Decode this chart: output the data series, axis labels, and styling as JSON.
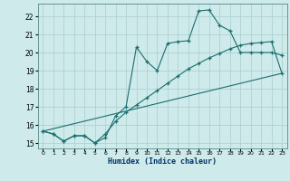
{
  "xlabel": "Humidex (Indice chaleur)",
  "bg_color": "#ceeaea",
  "grid_color": "#aacece",
  "line_color": "#1a6e6e",
  "xmin": -0.5,
  "xmax": 23.5,
  "ymin": 14.7,
  "ymax": 22.7,
  "yticks": [
    15,
    16,
    17,
    18,
    19,
    20,
    21,
    22
  ],
  "xticks": [
    0,
    1,
    2,
    3,
    4,
    5,
    6,
    7,
    8,
    9,
    10,
    11,
    12,
    13,
    14,
    15,
    16,
    17,
    18,
    19,
    20,
    21,
    22,
    23
  ],
  "line1_x": [
    0,
    1,
    2,
    3,
    4,
    5,
    6,
    7,
    8,
    9,
    10,
    11,
    12,
    13,
    14,
    15,
    16,
    17,
    18,
    19,
    20,
    21,
    22,
    23
  ],
  "line1_y": [
    15.65,
    15.5,
    15.1,
    15.4,
    15.4,
    15.0,
    15.3,
    16.5,
    17.0,
    20.3,
    19.5,
    19.0,
    20.5,
    20.6,
    20.65,
    22.3,
    22.35,
    21.5,
    21.2,
    20.0,
    20.0,
    20.0,
    20.0,
    19.85
  ],
  "line2_x": [
    0,
    1,
    2,
    3,
    4,
    5,
    6,
    7,
    8,
    9,
    10,
    11,
    12,
    13,
    14,
    15,
    16,
    17,
    18,
    19,
    20,
    21,
    22,
    23
  ],
  "line2_y": [
    15.65,
    15.5,
    15.1,
    15.4,
    15.4,
    15.0,
    15.5,
    16.2,
    16.7,
    17.1,
    17.5,
    17.9,
    18.3,
    18.7,
    19.1,
    19.4,
    19.7,
    19.95,
    20.2,
    20.4,
    20.5,
    20.55,
    20.6,
    18.85
  ],
  "line3_x": [
    0,
    23
  ],
  "line3_y": [
    15.65,
    18.85
  ]
}
